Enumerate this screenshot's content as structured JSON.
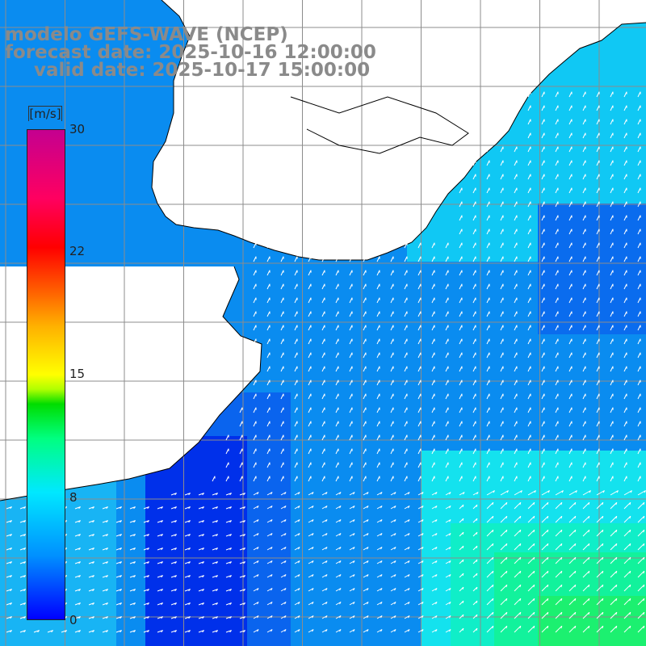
{
  "title": {
    "line1": "modelo GEFS-WAVE (NCEP)",
    "line2": "forecast date: 2025-10-16 12:00:00",
    "line3": "valid date: 2025-10-17 15:00:00"
  },
  "colorbar": {
    "unit": "[m/s]",
    "ticks": [
      "30",
      "22",
      "15",
      "8",
      "0"
    ],
    "tick_values": [
      30,
      22,
      15,
      8,
      0
    ]
  },
  "colors": {
    "land": "#ffffff",
    "grid": "#8c8c8c",
    "coast": "#000000",
    "arrow": "#ffffff",
    "title_text": "#8a8a8a"
  }
}
